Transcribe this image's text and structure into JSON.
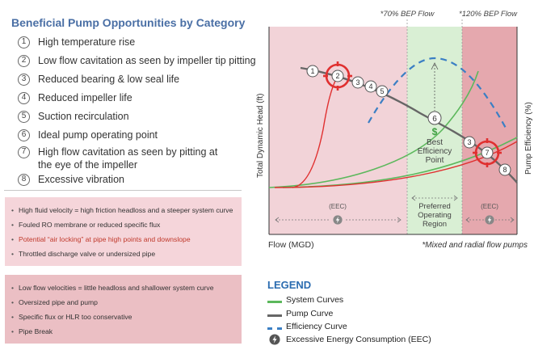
{
  "panel": {
    "title": "Beneficial Pump Opportunities by Category",
    "categories": [
      {
        "num": "1",
        "label": "High temperature rise"
      },
      {
        "num": "2",
        "label": "Low flow cavitation as seen by impeller tip pitting"
      },
      {
        "num": "3",
        "label": "Reduced bearing & low seal life"
      },
      {
        "num": "4",
        "label": "Reduced impeller life"
      },
      {
        "num": "5",
        "label": "Suction recirculation"
      },
      {
        "num": "6",
        "label": "Ideal pump operating point"
      },
      {
        "num": "7",
        "label": "High flow cavitation as seen by pitting at the eye of the impeller"
      },
      {
        "num": "8",
        "label": "Excessive vibration"
      }
    ]
  },
  "high_flow_box": [
    {
      "text": "High fluid velocity = high friction headloss and a steeper system curve",
      "highlight": false
    },
    {
      "text": "Fouled RO membrane or reduced specific flux",
      "highlight": false
    },
    {
      "text": "Potential “air locking” at pipe high points and downslope",
      "highlight": true
    },
    {
      "text": "Throttled discharge valve or undersized pipe",
      "highlight": false
    }
  ],
  "low_flow_box": [
    {
      "text": "Low flow velocities = little headloss and shallower system curve"
    },
    {
      "text": "Oversized pipe and pump"
    },
    {
      "text": "Specific flux or HLR too conservative"
    },
    {
      "text": "Pipe Break"
    }
  ],
  "diagram": {
    "label_70": "*70% BEP Flow",
    "label_120": "*120% BEP Flow",
    "y_left_label": "Total Dynamic Head (ft)",
    "y_right_label": "Pump Efficiency (%)",
    "x_label": "Flow (MGD)",
    "footnote": "*Mixed and radial flow pumps",
    "eec_label": "(EEC)",
    "preferred_region": [
      "Preferred",
      "Operating",
      "Region"
    ],
    "bep_symbol": "$",
    "bep_label": [
      "Best",
      "Efficiency",
      "Point"
    ],
    "curve_markers": [
      "1",
      "2",
      "3",
      "4",
      "5",
      "6",
      "3",
      "7",
      "8"
    ],
    "colors": {
      "system_curve": "#5cb85c",
      "pump_curve": "#666666",
      "efficiency_curve": "#3b7fc4",
      "eec_zone": "#f2d3d8",
      "preferred_zone": "#d9efd4",
      "high_zone": "#e5a8ae",
      "target_red": "#e03030",
      "accent_green": "#3ea043"
    }
  },
  "legend": {
    "title": "LEGEND",
    "items": [
      {
        "label": "System Curves",
        "icon": "green-line"
      },
      {
        "label": "Pump Curve",
        "icon": "gray-line"
      },
      {
        "label": "Efficiency Curve",
        "icon": "blue-dashed-line"
      },
      {
        "label": "Excessive Energy Consumption (EEC)",
        "icon": "lightning-icon"
      }
    ]
  }
}
